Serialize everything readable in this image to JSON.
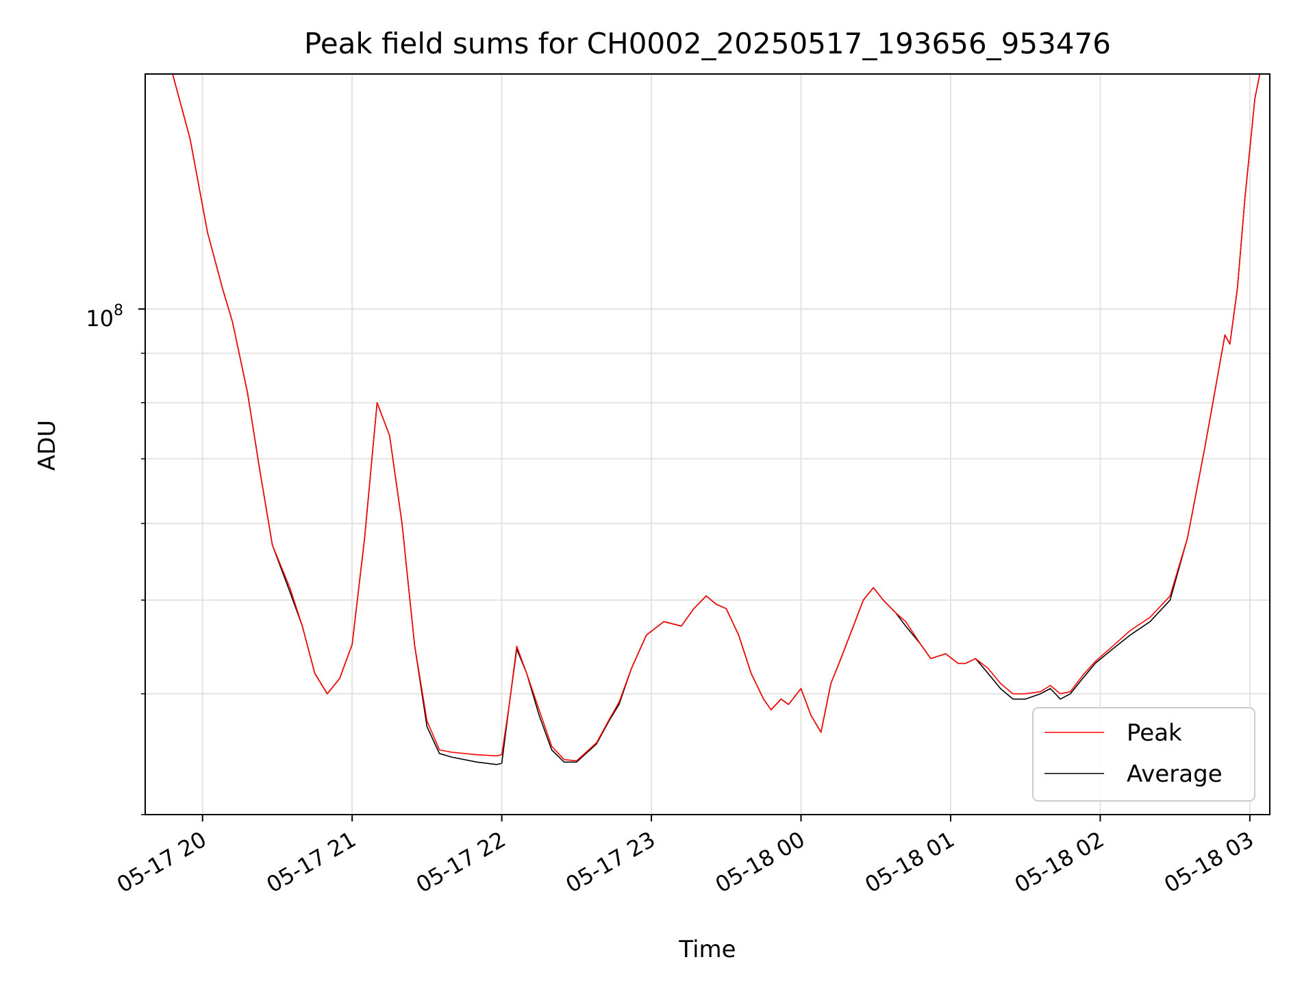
{
  "chart_data": {
    "type": "line",
    "title": "Peak field sums for CH0002_20250517_193656_953476",
    "xlabel": "Time",
    "ylabel": "ADU",
    "yscale": "log",
    "x_tick_labels": [
      "05-17 20",
      "05-17 21",
      "05-17 22",
      "05-17 23",
      "05-18 00",
      "05-18 01",
      "05-18 02",
      "05-18 03"
    ],
    "x_tick_values": [
      "2025-05-17T20:00",
      "2025-05-17T21:00",
      "2025-05-17T22:00",
      "2025-05-17T23:00",
      "2025-05-18T00:00",
      "2025-05-18T01:00",
      "2025-05-18T02:00",
      "2025-05-18T03:00"
    ],
    "xlim": [
      "2025-05-17T19:37",
      "2025-05-18T03:08"
    ],
    "ylim": [
      30000000,
      175000000
    ],
    "y_major_ticks": [
      {
        "value": 100000000,
        "base": "10",
        "exponent": "8"
      }
    ],
    "y_minor_ticks": [
      30000000,
      40000000,
      50000000,
      60000000,
      70000000,
      80000000,
      90000000,
      200000000
    ],
    "grid": true,
    "legend": {
      "position": "lower-right",
      "entries": [
        "Peak",
        "Average"
      ]
    },
    "colors": {
      "Peak": "#ff0000",
      "Average": "#000000"
    },
    "series": [
      {
        "name": "Average",
        "points": [
          [
            "2025-05-17T19:37",
            175000000
          ],
          [
            "2025-05-17T19:48",
            175000000
          ],
          [
            "2025-05-17T19:55",
            150000000
          ],
          [
            "2025-05-17T20:02",
            120000000
          ],
          [
            "2025-05-17T20:08",
            105000000
          ],
          [
            "2025-05-17T20:12",
            97000000
          ],
          [
            "2025-05-17T20:18",
            82000000
          ],
          [
            "2025-05-17T20:23",
            68000000
          ],
          [
            "2025-05-17T20:28",
            57000000
          ],
          [
            "2025-05-17T20:35",
            51000000
          ],
          [
            "2025-05-17T20:40",
            47000000
          ],
          [
            "2025-05-17T20:45",
            42000000
          ],
          [
            "2025-05-17T20:50",
            40000000
          ],
          [
            "2025-05-17T20:55",
            41500000
          ],
          [
            "2025-05-17T21:00",
            45000000
          ],
          [
            "2025-05-17T21:05",
            58000000
          ],
          [
            "2025-05-17T21:10",
            80000000
          ],
          [
            "2025-05-17T21:15",
            74000000
          ],
          [
            "2025-05-17T21:20",
            60000000
          ],
          [
            "2025-05-17T21:25",
            45000000
          ],
          [
            "2025-05-17T21:30",
            37000000
          ],
          [
            "2025-05-17T21:35",
            34700000
          ],
          [
            "2025-05-17T21:40",
            34400000
          ],
          [
            "2025-05-17T21:50",
            34000000
          ],
          [
            "2025-05-17T21:58",
            33800000
          ],
          [
            "2025-05-17T22:00",
            33900000
          ],
          [
            "2025-05-17T22:03",
            39000000
          ],
          [
            "2025-05-17T22:06",
            44500000
          ],
          [
            "2025-05-17T22:10",
            42000000
          ],
          [
            "2025-05-17T22:15",
            38000000
          ],
          [
            "2025-05-17T22:20",
            35000000
          ],
          [
            "2025-05-17T22:25",
            34000000
          ],
          [
            "2025-05-17T22:30",
            34000000
          ],
          [
            "2025-05-17T22:38",
            35500000
          ],
          [
            "2025-05-17T22:43",
            37500000
          ],
          [
            "2025-05-17T22:47",
            39000000
          ],
          [
            "2025-05-17T22:52",
            42500000
          ],
          [
            "2025-05-17T22:58",
            46000000
          ],
          [
            "2025-05-17T23:05",
            47500000
          ],
          [
            "2025-05-17T23:12",
            47000000
          ],
          [
            "2025-05-17T23:17",
            49000000
          ],
          [
            "2025-05-17T23:22",
            50500000
          ],
          [
            "2025-05-17T23:26",
            49500000
          ],
          [
            "2025-05-17T23:30",
            49000000
          ],
          [
            "2025-05-17T23:35",
            46000000
          ],
          [
            "2025-05-17T23:40",
            42000000
          ],
          [
            "2025-05-17T23:45",
            39500000
          ],
          [
            "2025-05-17T23:48",
            38500000
          ],
          [
            "2025-05-17T23:52",
            39500000
          ],
          [
            "2025-05-17T23:55",
            39000000
          ],
          [
            "2025-05-18T00:00",
            40500000
          ],
          [
            "2025-05-18T00:04",
            38000000
          ],
          [
            "2025-05-18T00:08",
            36500000
          ],
          [
            "2025-05-18T00:12",
            41000000
          ],
          [
            "2025-05-18T00:16",
            43500000
          ],
          [
            "2025-05-18T00:21",
            47000000
          ],
          [
            "2025-05-18T00:25",
            50000000
          ],
          [
            "2025-05-18T00:29",
            51500000
          ],
          [
            "2025-05-18T00:33",
            50000000
          ],
          [
            "2025-05-18T00:38",
            48500000
          ],
          [
            "2025-05-18T00:42",
            47000000
          ],
          [
            "2025-05-18T00:48",
            45000000
          ],
          [
            "2025-05-18T00:52",
            43500000
          ],
          [
            "2025-05-18T00:58",
            44000000
          ],
          [
            "2025-05-18T01:03",
            43000000
          ],
          [
            "2025-05-18T01:06",
            43000000
          ],
          [
            "2025-05-18T01:10",
            43500000
          ],
          [
            "2025-05-18T01:15",
            42000000
          ],
          [
            "2025-05-18T01:20",
            40500000
          ],
          [
            "2025-05-18T01:25",
            39500000
          ],
          [
            "2025-05-18T01:30",
            39500000
          ],
          [
            "2025-05-18T01:36",
            40000000
          ],
          [
            "2025-05-18T01:40",
            40500000
          ],
          [
            "2025-05-18T01:44",
            39500000
          ],
          [
            "2025-05-18T01:48",
            40000000
          ],
          [
            "2025-05-18T01:53",
            41500000
          ],
          [
            "2025-05-18T01:58",
            43000000
          ],
          [
            "2025-05-18T02:05",
            44500000
          ],
          [
            "2025-05-18T02:12",
            46000000
          ],
          [
            "2025-05-18T02:20",
            47500000
          ],
          [
            "2025-05-18T02:28",
            50000000
          ],
          [
            "2025-05-18T02:35",
            58000000
          ],
          [
            "2025-05-18T02:42",
            72000000
          ],
          [
            "2025-05-18T02:47",
            85000000
          ],
          [
            "2025-05-18T02:50",
            94000000
          ],
          [
            "2025-05-18T02:52",
            92000000
          ],
          [
            "2025-05-18T02:55",
            105000000
          ],
          [
            "2025-05-18T02:58",
            130000000
          ],
          [
            "2025-05-18T03:02",
            165000000
          ],
          [
            "2025-05-18T03:04",
            175000000
          ],
          [
            "2025-05-18T03:08",
            175000000
          ]
        ]
      },
      {
        "name": "Peak",
        "points": [
          [
            "2025-05-17T19:37",
            175000000
          ],
          [
            "2025-05-17T19:48",
            175000000
          ],
          [
            "2025-05-17T19:55",
            150000000
          ],
          [
            "2025-05-17T20:02",
            120000000
          ],
          [
            "2025-05-17T20:08",
            105000000
          ],
          [
            "2025-05-17T20:12",
            97000000
          ],
          [
            "2025-05-17T20:18",
            82000000
          ],
          [
            "2025-05-17T20:23",
            68000000
          ],
          [
            "2025-05-17T20:28",
            57000000
          ],
          [
            "2025-05-17T20:35",
            51500000
          ],
          [
            "2025-05-17T20:40",
            47000000
          ],
          [
            "2025-05-17T20:45",
            42000000
          ],
          [
            "2025-05-17T20:50",
            40000000
          ],
          [
            "2025-05-17T20:55",
            41500000
          ],
          [
            "2025-05-17T21:00",
            45000000
          ],
          [
            "2025-05-17T21:05",
            58000000
          ],
          [
            "2025-05-17T21:10",
            80000000
          ],
          [
            "2025-05-17T21:15",
            74000000
          ],
          [
            "2025-05-17T21:20",
            60000000
          ],
          [
            "2025-05-17T21:25",
            45000000
          ],
          [
            "2025-05-17T21:30",
            37500000
          ],
          [
            "2025-05-17T21:35",
            35000000
          ],
          [
            "2025-05-17T21:40",
            34800000
          ],
          [
            "2025-05-17T21:50",
            34600000
          ],
          [
            "2025-05-17T21:58",
            34500000
          ],
          [
            "2025-05-17T22:00",
            34600000
          ],
          [
            "2025-05-17T22:03",
            39000000
          ],
          [
            "2025-05-17T22:06",
            44800000
          ],
          [
            "2025-05-17T22:10",
            42000000
          ],
          [
            "2025-05-17T22:15",
            38500000
          ],
          [
            "2025-05-17T22:20",
            35300000
          ],
          [
            "2025-05-17T22:25",
            34200000
          ],
          [
            "2025-05-17T22:30",
            34100000
          ],
          [
            "2025-05-17T22:38",
            35600000
          ],
          [
            "2025-05-17T22:43",
            37600000
          ],
          [
            "2025-05-17T22:47",
            39200000
          ],
          [
            "2025-05-17T22:52",
            42500000
          ],
          [
            "2025-05-17T22:58",
            46000000
          ],
          [
            "2025-05-17T23:05",
            47500000
          ],
          [
            "2025-05-17T23:12",
            47000000
          ],
          [
            "2025-05-17T23:17",
            49000000
          ],
          [
            "2025-05-17T23:22",
            50500000
          ],
          [
            "2025-05-17T23:26",
            49500000
          ],
          [
            "2025-05-17T23:30",
            49000000
          ],
          [
            "2025-05-17T23:35",
            46000000
          ],
          [
            "2025-05-17T23:40",
            42000000
          ],
          [
            "2025-05-17T23:45",
            39500000
          ],
          [
            "2025-05-17T23:48",
            38500000
          ],
          [
            "2025-05-17T23:52",
            39500000
          ],
          [
            "2025-05-17T23:55",
            39000000
          ],
          [
            "2025-05-18T00:00",
            40500000
          ],
          [
            "2025-05-18T00:04",
            38000000
          ],
          [
            "2025-05-18T00:08",
            36500000
          ],
          [
            "2025-05-18T00:12",
            41000000
          ],
          [
            "2025-05-18T00:16",
            43500000
          ],
          [
            "2025-05-18T00:21",
            47000000
          ],
          [
            "2025-05-18T00:25",
            50000000
          ],
          [
            "2025-05-18T00:29",
            51500000
          ],
          [
            "2025-05-18T00:33",
            50000000
          ],
          [
            "2025-05-18T00:38",
            48500000
          ],
          [
            "2025-05-18T00:42",
            47500000
          ],
          [
            "2025-05-18T00:48",
            45000000
          ],
          [
            "2025-05-18T00:52",
            43500000
          ],
          [
            "2025-05-18T00:58",
            44000000
          ],
          [
            "2025-05-18T01:03",
            43000000
          ],
          [
            "2025-05-18T01:06",
            43000000
          ],
          [
            "2025-05-18T01:10",
            43500000
          ],
          [
            "2025-05-18T01:15",
            42500000
          ],
          [
            "2025-05-18T01:20",
            41000000
          ],
          [
            "2025-05-18T01:25",
            40000000
          ],
          [
            "2025-05-18T01:30",
            40000000
          ],
          [
            "2025-05-18T01:36",
            40200000
          ],
          [
            "2025-05-18T01:40",
            40800000
          ],
          [
            "2025-05-18T01:44",
            40000000
          ],
          [
            "2025-05-18T01:48",
            40200000
          ],
          [
            "2025-05-18T01:53",
            41800000
          ],
          [
            "2025-05-18T01:58",
            43200000
          ],
          [
            "2025-05-18T02:05",
            44800000
          ],
          [
            "2025-05-18T02:12",
            46500000
          ],
          [
            "2025-05-18T02:20",
            48000000
          ],
          [
            "2025-05-18T02:28",
            50500000
          ],
          [
            "2025-05-18T02:35",
            58000000
          ],
          [
            "2025-05-18T02:42",
            72000000
          ],
          [
            "2025-05-18T02:47",
            85000000
          ],
          [
            "2025-05-18T02:50",
            94000000
          ],
          [
            "2025-05-18T02:52",
            92000000
          ],
          [
            "2025-05-18T02:55",
            105000000
          ],
          [
            "2025-05-18T02:58",
            130000000
          ],
          [
            "2025-05-18T03:02",
            165000000
          ],
          [
            "2025-05-18T03:04",
            175000000
          ],
          [
            "2025-05-18T03:08",
            175000000
          ]
        ]
      }
    ]
  }
}
